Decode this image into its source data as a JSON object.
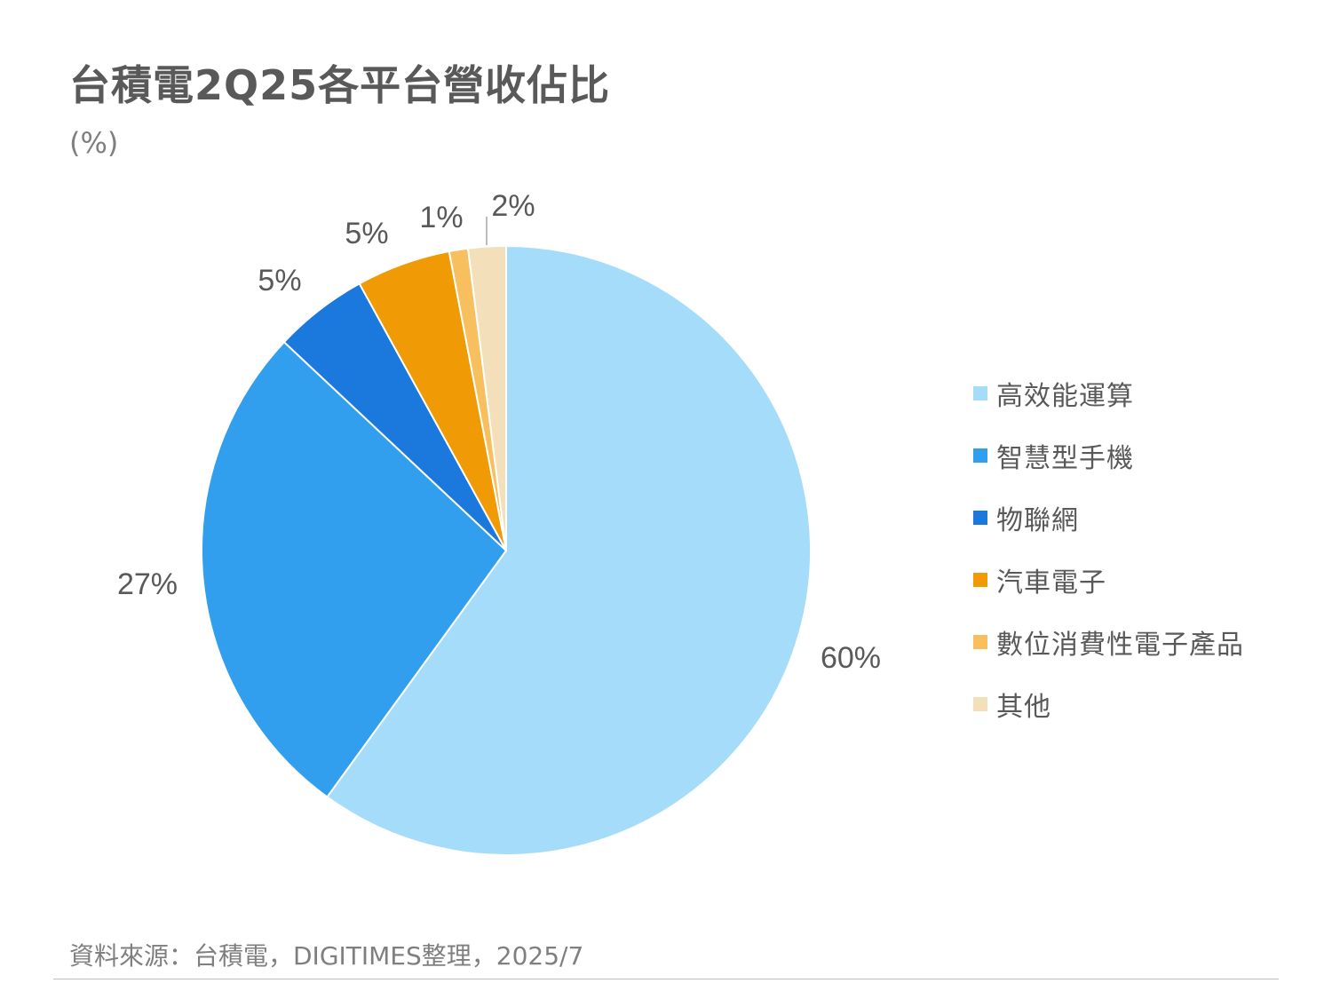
{
  "title": "台積電2Q25各平台營收佔比",
  "unit": "(%)",
  "source": "資料來源：台積電，DIGITIMES整理，2025/7",
  "chart_data": {
    "type": "pie",
    "title": "台積電2Q25各平台營收佔比",
    "unit": "(%)",
    "categories": [
      "高效能運算",
      "智慧型手機",
      "物聯網",
      "汽車電子",
      "數位消費性電子產品",
      "其他"
    ],
    "values": [
      60,
      27,
      5,
      5,
      1,
      2
    ],
    "labels": [
      "60%",
      "27%",
      "5%",
      "5%",
      "1%",
      "2%"
    ],
    "colors": [
      "#A5DCFA",
      "#319EEE",
      "#1B78DC",
      "#F09B06",
      "#F7BF5E",
      "#F3DFB9"
    ],
    "legend_position": "right",
    "start": "top, clockwise"
  }
}
